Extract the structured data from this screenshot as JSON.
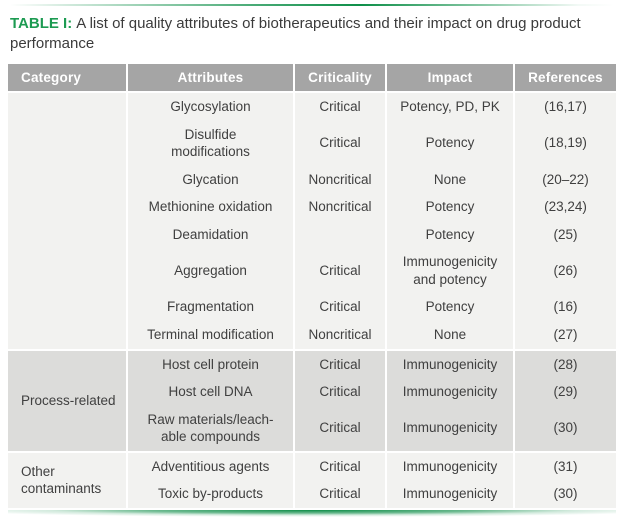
{
  "title": {
    "label": "TABLE I:",
    "text": "A list of quality attributes of biotherapeutics and their impact on drug product performance"
  },
  "colors": {
    "accent_green": "#1d9b52",
    "rule_green": "#0e8f49",
    "header_gray": "#a5a5a5",
    "section_light": "#f2f2f0",
    "section_gray": "#dcdcda",
    "body_text": "#404040"
  },
  "table": {
    "columns": [
      "Category",
      "Attributes",
      "Criticality",
      "Impact",
      "References"
    ],
    "sections": [
      {
        "category": "",
        "rows": [
          {
            "attribute": "Glycosylation",
            "criticality": "Critical",
            "impact": "Potency, PD, PK",
            "references": "(16,17)"
          },
          {
            "attribute": "Disulfide\nmodifications",
            "criticality": "Critical",
            "impact": "Potency",
            "references": "(18,19)"
          },
          {
            "attribute": "Glycation",
            "criticality": "Noncritical",
            "impact": "None",
            "references": "(20–22)"
          },
          {
            "attribute": "Methionine oxidation",
            "criticality": "Noncritical",
            "impact": "Potency",
            "references": "(23,24)"
          },
          {
            "attribute": "Deamidation",
            "criticality": "",
            "impact": "Potency",
            "references": "(25)"
          },
          {
            "attribute": "Aggregation",
            "criticality": "Critical",
            "impact": "Immunogenicity\nand potency",
            "references": "(26)"
          },
          {
            "attribute": "Fragmentation",
            "criticality": "Critical",
            "impact": "Potency",
            "references": "(16)"
          },
          {
            "attribute": "Terminal modification",
            "criticality": "Noncritical",
            "impact": "None",
            "references": "(27)"
          }
        ]
      },
      {
        "category": "Process-related",
        "rows": [
          {
            "attribute": "Host cell protein",
            "criticality": "Critical",
            "impact": "Immunogenicity",
            "references": "(28)"
          },
          {
            "attribute": "Host cell DNA",
            "criticality": "Critical",
            "impact": "Immunogenicity",
            "references": "(29)"
          },
          {
            "attribute": "Raw materials/leach-\nable compounds",
            "criticality": "Critical",
            "impact": "Immunogenicity",
            "references": "(30)"
          }
        ]
      },
      {
        "category": "Other\ncontaminants",
        "rows": [
          {
            "attribute": "Adventitious agents",
            "criticality": "Critical",
            "impact": "Immunogenicity",
            "references": "(31)"
          },
          {
            "attribute": "Toxic by-products",
            "criticality": "Critical",
            "impact": "Immunogenicity",
            "references": "(30)"
          }
        ]
      }
    ]
  }
}
